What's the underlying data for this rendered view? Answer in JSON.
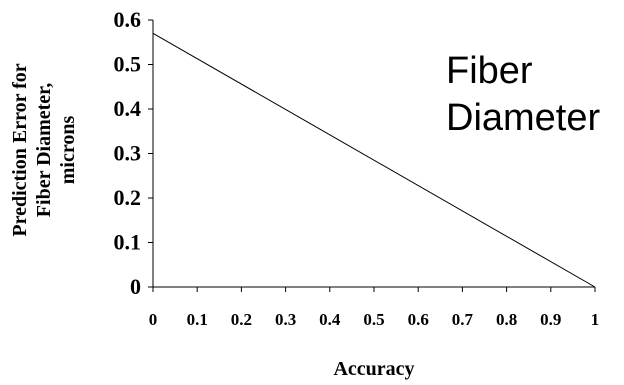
{
  "chart_data": {
    "type": "line",
    "title": "",
    "xlabel": "Accuracy",
    "ylabel_lines": [
      "Prediction Error for",
      "Fiber Diameter,",
      "microns"
    ],
    "annotation_lines": [
      "Fiber",
      "Diameter"
    ],
    "xlim": [
      0,
      1
    ],
    "ylim": [
      0,
      0.6
    ],
    "x_ticks": [
      "0",
      "0.1",
      "0.2",
      "0.3",
      "0.4",
      "0.5",
      "0.6",
      "0.7",
      "0.8",
      "0.9",
      "1"
    ],
    "y_ticks": [
      "0",
      "0.1",
      "0.2",
      "0.3",
      "0.4",
      "0.5",
      "0.6"
    ],
    "grid": false,
    "legend": "none",
    "series": [
      {
        "x": [
          0,
          1
        ],
        "y": [
          0.57,
          0
        ],
        "color": "#000000"
      }
    ]
  }
}
